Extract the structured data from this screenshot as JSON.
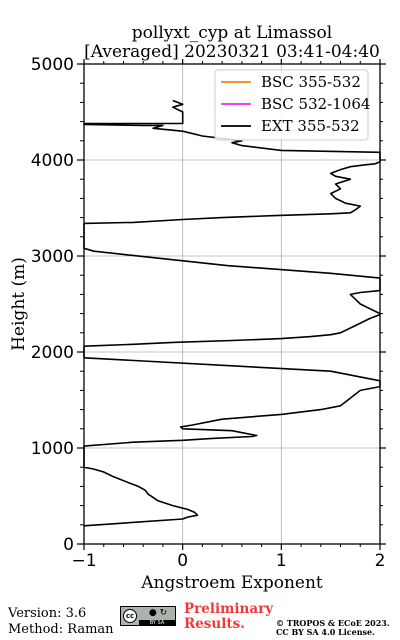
{
  "chart_data": {
    "type": "line",
    "title_line1": "pollyxt_cyp at Limassol",
    "title_line2": "[Averaged] 20230321 03:41-04:40",
    "xlabel": "Angstroem Exponent",
    "ylabel": "Height (m)",
    "xlim": [
      -1,
      2
    ],
    "ylim": [
      0,
      5000
    ],
    "xticks": [
      -1,
      0,
      1,
      2
    ],
    "xtick_labels": [
      "−1",
      "0",
      "1",
      "2"
    ],
    "yticks": [
      0,
      1000,
      2000,
      3000,
      4000,
      5000
    ],
    "ytick_labels": [
      "0",
      "1000",
      "2000",
      "3000",
      "4000",
      "5000"
    ],
    "grid": true,
    "legend_position": "top-right",
    "series": [
      {
        "name": "BSC 355-532",
        "color": "#ff7f0e",
        "x": [],
        "y": []
      },
      {
        "name": "BSC 532-1064",
        "color": "#ee2bee",
        "x": [],
        "y": []
      },
      {
        "name": "EXT 355-532",
        "color": "#000000",
        "x": [
          -1.0,
          0.0,
          0.05,
          0.15,
          0.12,
          0.05,
          -0.1,
          -0.25,
          -0.35,
          -0.38,
          -0.45,
          -0.55,
          -0.7,
          -0.8,
          -0.9,
          -1.0,
          -1.0,
          -1.0,
          -0.5,
          0.0,
          0.3,
          0.7,
          0.75,
          0.5,
          0.0,
          -0.02,
          0.1,
          0.4,
          1.0,
          1.4,
          1.6,
          1.65,
          1.7,
          1.75,
          1.8,
          2.0,
          2.0,
          1.5,
          -1.0,
          -1.0,
          -0.5,
          -0.1,
          0.5,
          1.0,
          1.3,
          1.5,
          1.6,
          1.7,
          1.9,
          2.0,
          2.0,
          1.9,
          1.8,
          1.75,
          1.7,
          1.8,
          2.0,
          2.0,
          1.5,
          0.45,
          -0.9,
          -1.0,
          -1.0,
          -0.5,
          0.0,
          0.4,
          0.9,
          1.5,
          1.7,
          1.75,
          1.8,
          1.65,
          1.55,
          1.5,
          1.6,
          1.55,
          1.7,
          1.55,
          1.5,
          1.6,
          1.7,
          1.85,
          1.95,
          2.0,
          2.0,
          1.0,
          0.6,
          0.5,
          0.6,
          0.2,
          0.0,
          -0.3,
          -0.2,
          -0.4,
          -1.0,
          -1.0,
          0.0,
          0.0,
          -0.1,
          0.0,
          -0.05,
          -0.1
        ],
        "y": [
          190,
          260,
          280,
          300,
          330,
          360,
          400,
          450,
          520,
          560,
          600,
          640,
          700,
          750,
          780,
          800,
          1000,
          1020,
          1060,
          1080,
          1100,
          1120,
          1130,
          1180,
          1200,
          1220,
          1240,
          1300,
          1350,
          1400,
          1440,
          1480,
          1520,
          1560,
          1600,
          1640,
          1700,
          1800,
          1940,
          2060,
          2080,
          2100,
          2120,
          2140,
          2160,
          2180,
          2200,
          2250,
          2350,
          2390,
          2400,
          2450,
          2500,
          2550,
          2600,
          2620,
          2640,
          2770,
          2820,
          2900,
          3050,
          3080,
          3340,
          3350,
          3380,
          3400,
          3420,
          3440,
          3450,
          3480,
          3520,
          3550,
          3600,
          3650,
          3700,
          3750,
          3800,
          3830,
          3860,
          3900,
          3930,
          3950,
          3960,
          3980,
          4080,
          4100,
          4150,
          4180,
          4200,
          4250,
          4300,
          4330,
          4360,
          4360,
          4370,
          4380,
          4380,
          4500,
          4550,
          4580,
          4600,
          4620
        ]
      }
    ]
  },
  "footer": {
    "version": "Version: 3.6",
    "method": "Method: Raman",
    "preliminary_line1": "Preliminary",
    "preliminary_line2": "Results.",
    "copyright_line1": "© TROPOS & ECoE 2023.",
    "copyright_line2": "CC BY SA 4.0 License.",
    "license_badge_text": "cc",
    "license_badge_strip": "BY SA"
  }
}
